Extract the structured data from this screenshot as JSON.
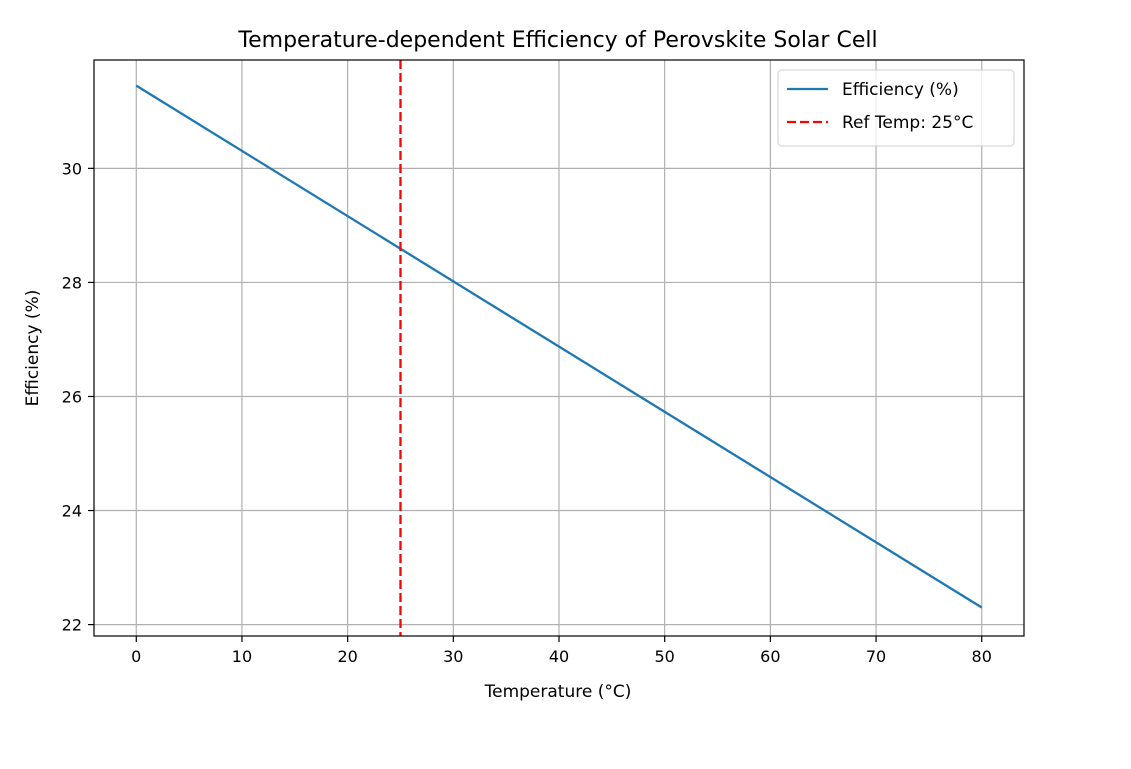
{
  "chart_data": {
    "type": "line",
    "title": "Temperature-dependent Efficiency of Perovskite Solar Cell",
    "xlabel": "Temperature (°C)",
    "ylabel": "Efficiency (%)",
    "xlim": [
      -4,
      84
    ],
    "ylim": [
      21.8,
      31.9
    ],
    "xticks": [
      0,
      10,
      20,
      30,
      40,
      50,
      60,
      70,
      80
    ],
    "yticks": [
      22,
      24,
      26,
      28,
      30
    ],
    "grid": true,
    "legend_position": "top-right",
    "series": [
      {
        "name": "Efficiency (%)",
        "color": "#1f77b4",
        "style": "solid",
        "x": [
          0,
          80
        ],
        "y": [
          31.45,
          22.3
        ]
      }
    ],
    "reference_lines": [
      {
        "name": "Ref Temp: 25°C",
        "color": "#ff0000",
        "style": "dashed",
        "x": 25
      }
    ]
  }
}
